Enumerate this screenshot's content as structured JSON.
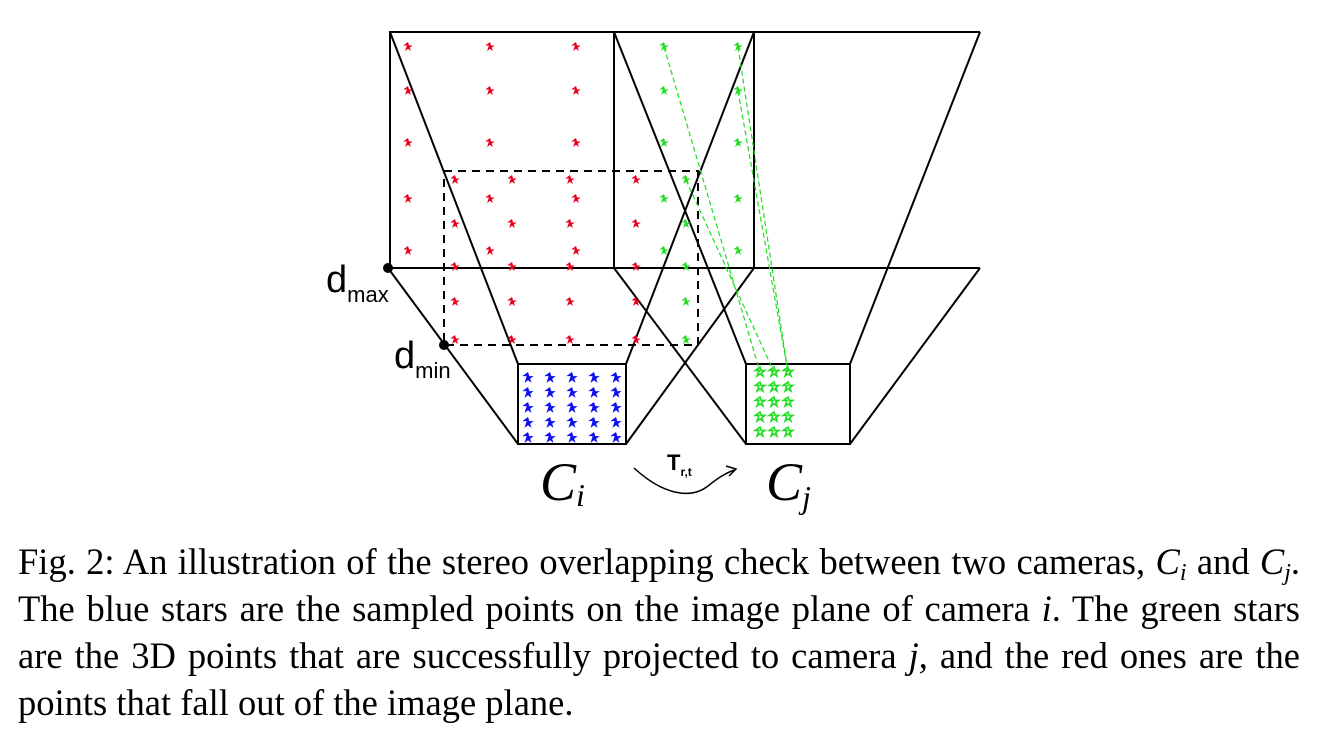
{
  "figure": {
    "labels": {
      "d_max_main": "d",
      "d_max_sub": "max",
      "d_min_main": "d",
      "d_min_sub": "min",
      "cam_i_main": "C",
      "cam_i_sub": "i",
      "cam_j_main": "C",
      "cam_j_sub": "j",
      "transform_main": "T",
      "transform_sub": "r,t"
    },
    "colors": {
      "red_stars": "#e8001c",
      "green_stars": "#22dd22",
      "blue_stars": "#1010ee",
      "lines": "#000000"
    },
    "icons": {
      "sample_point": "star-icon",
      "curved_arrow": "curved-arrow-icon"
    }
  },
  "caption": {
    "fig_label": "Fig. 2:",
    "text_1": "An illustration of the stereo overlapping check between two cameras,",
    "cam_i_main": "C",
    "cam_i_sub": "i",
    "text_and": "and",
    "cam_j_main": "C",
    "cam_j_sub": "j",
    "text_2": ". The blue stars are the sampled points on the image plane of camera",
    "var_i": "i",
    "text_3": ". The green stars are the 3D points that are successfully projected to camera",
    "var_j": "j",
    "text_4": ", and the red ones are the points that fall out of the image plane."
  }
}
